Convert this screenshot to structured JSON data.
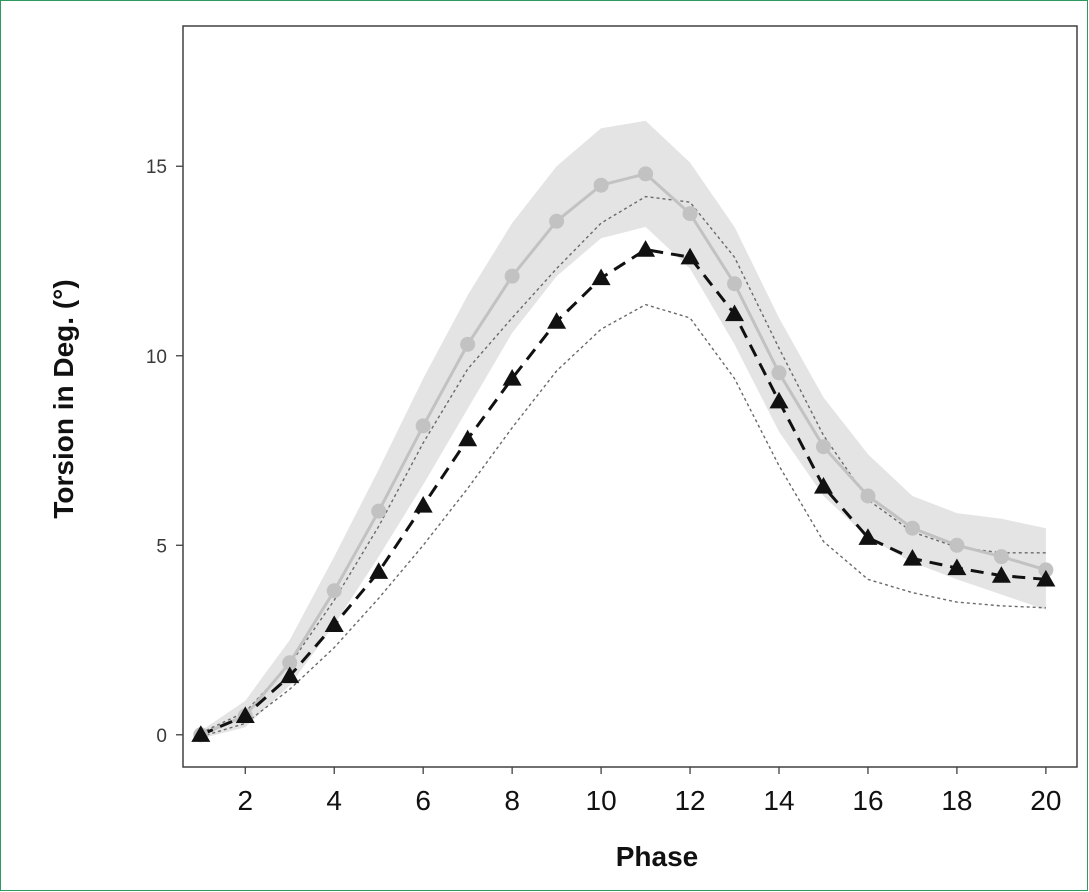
{
  "chart_data": {
    "type": "line",
    "title": "",
    "xlabel": "Phase",
    "ylabel": "Torsion in Deg. (°)",
    "xlim": [
      0.6,
      20.7
    ],
    "ylim": [
      -0.85,
      18.7
    ],
    "x_ticks": [
      2,
      4,
      6,
      8,
      10,
      12,
      14,
      16,
      18,
      20
    ],
    "x_tick_labels": [
      "2",
      "4",
      "6",
      "8",
      "10",
      "12",
      "14",
      "16",
      "18",
      "20"
    ],
    "y_ticks": [
      0,
      5,
      10,
      15
    ],
    "y_tick_labels": [
      "0",
      "5",
      "10",
      "15"
    ],
    "grid": false,
    "legend": "none",
    "x": [
      1,
      2,
      3,
      4,
      5,
      6,
      7,
      8,
      9,
      10,
      11,
      12,
      13,
      14,
      15,
      16,
      17,
      18,
      19,
      20
    ],
    "series": [
      {
        "marker": "circle",
        "line_style": "solid",
        "color": "#c2c2c2",
        "values": [
          0.0,
          0.5,
          1.9,
          3.8,
          5.9,
          8.15,
          10.3,
          12.1,
          13.55,
          14.5,
          14.8,
          13.75,
          11.9,
          9.55,
          7.6,
          6.3,
          5.45,
          5.0,
          4.7,
          4.35
        ],
        "band_upper": [
          0.1,
          0.9,
          2.5,
          4.7,
          7.0,
          9.4,
          11.6,
          13.5,
          15.0,
          16.0,
          16.2,
          15.1,
          13.4,
          11.0,
          8.9,
          7.4,
          6.3,
          5.85,
          5.7,
          5.45
        ],
        "band_lower": [
          -0.1,
          0.2,
          1.3,
          2.9,
          4.7,
          6.6,
          8.6,
          10.6,
          12.1,
          13.1,
          13.4,
          12.3,
          10.3,
          8.0,
          6.3,
          5.2,
          4.55,
          4.1,
          3.7,
          3.3
        ]
      },
      {
        "marker": "triangle",
        "line_style": "dashed",
        "color": "#111111",
        "values": [
          0.0,
          0.5,
          1.55,
          2.9,
          4.3,
          6.05,
          7.8,
          9.4,
          10.9,
          12.05,
          12.8,
          12.6,
          11.1,
          8.8,
          6.55,
          5.2,
          4.65,
          4.4,
          4.2,
          4.1
        ],
        "band_upper": [
          0.05,
          0.6,
          1.85,
          3.55,
          5.5,
          7.7,
          9.65,
          11.0,
          12.3,
          13.5,
          14.2,
          14.05,
          12.6,
          10.2,
          7.9,
          6.2,
          5.35,
          4.95,
          4.8,
          4.8
        ],
        "band_lower": [
          -0.05,
          0.3,
          1.2,
          2.3,
          3.6,
          5.0,
          6.5,
          8.1,
          9.6,
          10.7,
          11.35,
          11.0,
          9.4,
          7.1,
          5.1,
          4.1,
          3.75,
          3.5,
          3.4,
          3.35
        ]
      }
    ]
  }
}
